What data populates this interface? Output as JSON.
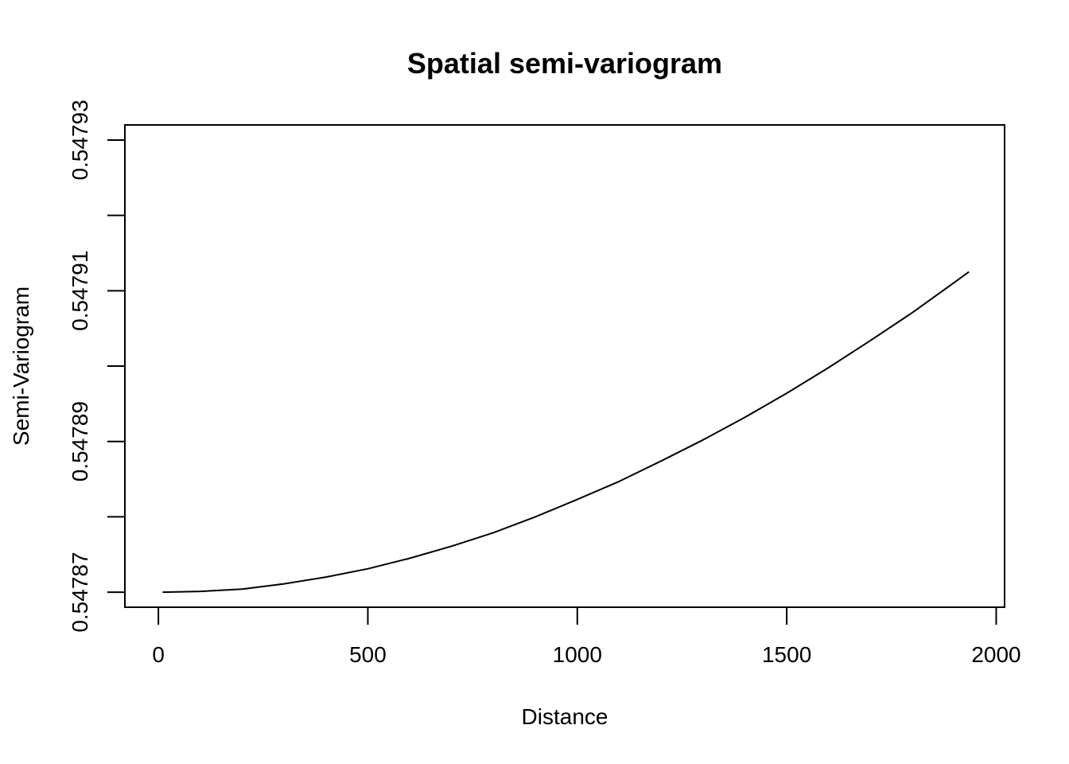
{
  "chart_data": {
    "type": "line",
    "title": "Spatial semi-variogram",
    "xlabel": "Distance",
    "ylabel": "Semi-Variogram",
    "xlim": [
      -80,
      2020
    ],
    "ylim": [
      0.547868,
      0.547932
    ],
    "x_ticks": [
      0,
      500,
      1000,
      1500,
      2000
    ],
    "x_tick_labels": [
      "0",
      "500",
      "1000",
      "1500",
      "2000"
    ],
    "y_ticks": [
      0.54787,
      0.54788,
      0.54789,
      0.5479,
      0.54791,
      0.54792,
      0.54793
    ],
    "y_tick_labels": [
      "0.54787",
      "",
      "0.54789",
      "",
      "0.54791",
      "",
      "0.54793"
    ],
    "grid": false,
    "legend": "none",
    "series": [
      {
        "x": [
          10,
          100,
          200,
          300,
          400,
          500,
          600,
          700,
          800,
          900,
          1000,
          1100,
          1200,
          1300,
          1400,
          1500,
          1600,
          1700,
          1800,
          1900,
          1935
        ],
        "y": [
          0.54787,
          0.5478701,
          0.5478704,
          0.5478711,
          0.547872,
          0.5478731,
          0.5478745,
          0.5478761,
          0.5478779,
          0.54788,
          0.5478823,
          0.5478847,
          0.5478874,
          0.5478902,
          0.5478932,
          0.5478964,
          0.5478998,
          0.5479034,
          0.5479071,
          0.5479111,
          0.5479125
        ],
        "color": "#000000"
      }
    ]
  }
}
